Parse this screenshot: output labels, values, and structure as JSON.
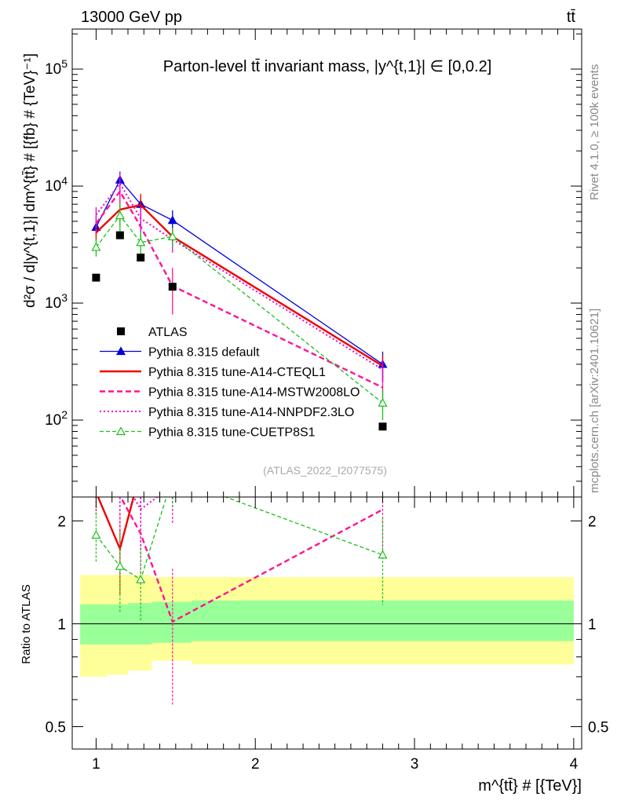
{
  "header": {
    "energy": "13000 GeV pp",
    "process": "tt̄"
  },
  "side_labels": {
    "rivet": "Rivet 4.1.0, ≥ 100k events",
    "mcplots": "mcplots.cern.ch [arXiv:2401.10621]"
  },
  "colors": {
    "atlas": "#000000",
    "default": "#0000dd",
    "cteql1": "#ee0000",
    "mstw": "#ff1493",
    "nnpdf": "#ee00cc",
    "cuetp8s1": "#19c019",
    "band_outer": "#ffff99",
    "band_inner": "#99ff99"
  },
  "chart_data": {
    "type": "scatter",
    "title": "Parton-level tt̄ invariant mass, |y^{t,1}| ∈ [0,0.2]",
    "analysis_id": "(ATLAS_2022_I2077575)",
    "xlabel": "m^{tt̄} # [{TeV}]",
    "ylabel": "d²σ / d|y^{t,1}| dm^{tt̄} # [{fb} # {TeV}⁻¹]",
    "ratio_ylabel": "Ratio to ATLAS",
    "xlim": [
      0.85,
      4.05
    ],
    "ylim": [
      22,
      220000
    ],
    "ratio_ylim": [
      0.43,
      2.35
    ],
    "x_ticks": [
      1,
      2,
      3,
      4
    ],
    "y_tick_labels": [
      "10^2",
      "10^3",
      "10^4",
      "10^5"
    ],
    "ratio_ticks": [
      0.5,
      1,
      2
    ],
    "x": [
      1.0,
      1.15,
      1.28,
      1.48,
      2.8
    ],
    "bin_edges": [
      0.9,
      1.07,
      1.2,
      1.35,
      1.6,
      4.0
    ],
    "band_inner": [
      [
        0.87,
        1.14
      ],
      [
        0.87,
        1.14
      ],
      [
        0.87,
        1.15
      ],
      [
        0.88,
        1.16
      ],
      [
        0.89,
        1.17
      ]
    ],
    "band_outer": [
      [
        0.7,
        1.39
      ],
      [
        0.71,
        1.39
      ],
      [
        0.73,
        1.39
      ],
      [
        0.78,
        1.37
      ],
      [
        0.76,
        1.37
      ]
    ],
    "series": [
      {
        "name": "ATLAS",
        "key": "atlas",
        "values": [
          1650,
          3800,
          2450,
          1380,
          88
        ],
        "err": [
          0,
          0,
          0,
          0,
          0
        ]
      },
      {
        "name": "Pythia 8.315 default",
        "key": "default",
        "values": [
          4450,
          11300,
          7000,
          5100,
          300
        ],
        "err": [
          600,
          2000,
          1000,
          1100,
          85
        ]
      },
      {
        "name": "Pythia 8.315 tune-A14-CTEQL1",
        "key": "cteql1",
        "values": [
          4000,
          6300,
          6900,
          3700,
          290
        ],
        "err": [
          600,
          1700,
          1700,
          700,
          70
        ]
      },
      {
        "name": "Pythia 8.315 tune-A14-MSTW2008LO",
        "key": "mstw",
        "values": [
          4800,
          9000,
          4500,
          1400,
          190
        ],
        "err": [
          800,
          2500,
          1300,
          600,
          50
        ]
      },
      {
        "name": "Pythia 8.315 tune-A14-NNPDF2.3LO",
        "key": "nnpdf",
        "values": [
          5700,
          10500,
          5300,
          3500,
          270
        ],
        "err": [
          900,
          2500,
          1400,
          800,
          60
        ]
      },
      {
        "name": "Pythia 8.315 tune-CUETP8S1",
        "key": "cuetp8s1",
        "values": [
          3000,
          5600,
          3300,
          3700,
          140
        ],
        "err": [
          500,
          1500,
          800,
          700,
          40
        ]
      }
    ]
  }
}
